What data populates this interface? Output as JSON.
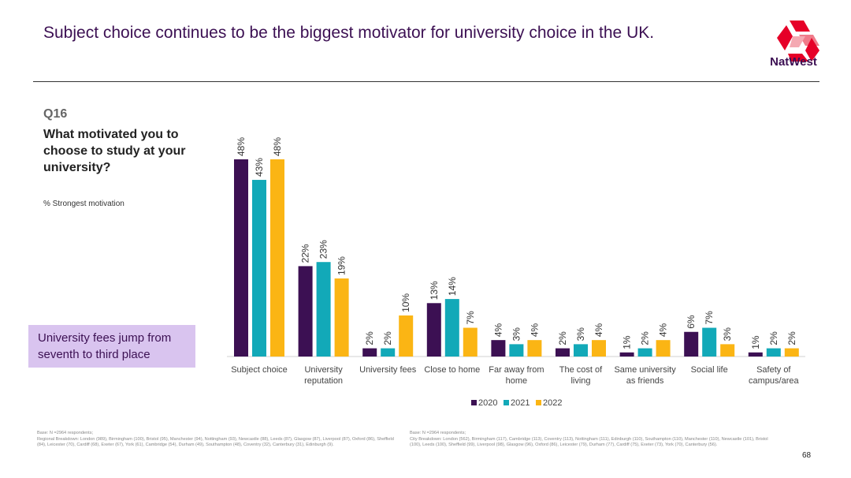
{
  "header": {
    "title": "Subject choice continues to be the biggest motivator for university choice in the UK.",
    "logo_text": "NatWest",
    "brand_color": "#e60028"
  },
  "question": {
    "code": "Q16",
    "text": "What motivated you to choose to study at your university?",
    "measure": "% Strongest motivation"
  },
  "callout": "University fees jump from seventh to third place",
  "chart_data": {
    "type": "bar",
    "categories": [
      "Subject choice",
      "University reputation",
      "University fees",
      "Close to home",
      "Far away from home",
      "The cost of living",
      "Same university as friends",
      "Social life",
      "Safety of campus/area"
    ],
    "category_lines": [
      [
        "Subject choice"
      ],
      [
        "University",
        "reputation"
      ],
      [
        "University fees"
      ],
      [
        "Close to home"
      ],
      [
        "Far away from",
        "home"
      ],
      [
        "The cost of",
        "living"
      ],
      [
        "Same university",
        "as friends"
      ],
      [
        "Social life"
      ],
      [
        "Safety of",
        "campus/area"
      ]
    ],
    "series": [
      {
        "name": "2020",
        "color": "#3c1053",
        "values": [
          48,
          22,
          2,
          13,
          4,
          2,
          1,
          6,
          1
        ]
      },
      {
        "name": "2021",
        "color": "#12a9b8",
        "values": [
          43,
          23,
          2,
          14,
          3,
          3,
          2,
          7,
          2
        ]
      },
      {
        "name": "2022",
        "color": "#fbb514",
        "values": [
          48,
          19,
          10,
          7,
          4,
          4,
          4,
          3,
          2
        ]
      }
    ],
    "unit": "%",
    "ylim": [
      0,
      50
    ],
    "legend_position": "bottom",
    "grid": false
  },
  "footnotes": {
    "left": {
      "base": "Base: N =2964 respondents;",
      "text": "Regional Breakdown: London (989), Birmingham (100), Bristol (95), Manchester (94), Nottingham (93), Newcastle (88), Leeds (87), Glasgow (87), Liverpool (87), Oxford (86), Sheffield (84), Leicester (70), Cardiff (68), Exeter (67), York (61), Cambridge (54), Durham (49), Southampton (48), Coventry (32), Canterbury (31), Edinburgh (9)."
    },
    "right": {
      "base": "Base: N =2964 respondents;",
      "text": "City Breakdown: London (562), Birmingham (117), Cambridge (113), Coventry (113), Nottingham (111), Edinburgh (110), Southampton (110), Manchester (110), Newcastle (101), Bristol (100), Leeds (100), Sheffield (99), Liverpool (98), Glasgow (96), Oxford (86), Leicester (79), Durham (77), Cardiff (75), Exeter (73), York (70), Canterbury (56)."
    }
  },
  "page_number": "68"
}
